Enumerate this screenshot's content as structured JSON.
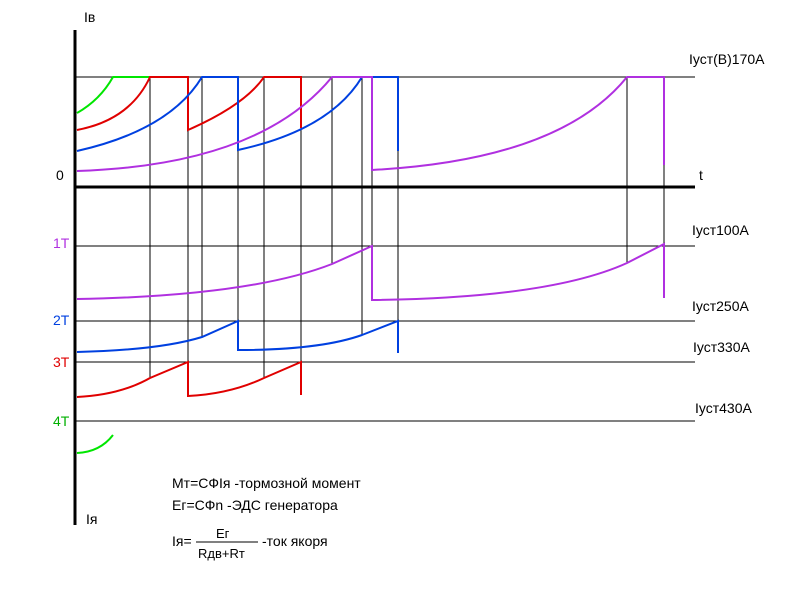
{
  "axes": {
    "y_top": "Iв",
    "origin": "0",
    "x": "t",
    "y_bottom": "Iя"
  },
  "levels": [
    "Iуст(В)170А",
    "Iуст100А",
    "Iуст250А",
    "Iуст330А",
    "Iуст430А"
  ],
  "stages": [
    "1Т",
    "2Т",
    "3Т",
    "4Т"
  ],
  "formulas": {
    "line1": "Мт=СФIя -тормозной момент",
    "line2": "Ег=СФn -ЭДС генератора",
    "line3": {
      "lhs": "Iя=",
      "numerator": "Ег",
      "denominator": "Rдв+Rт",
      "note": "-ток якоря"
    }
  }
}
